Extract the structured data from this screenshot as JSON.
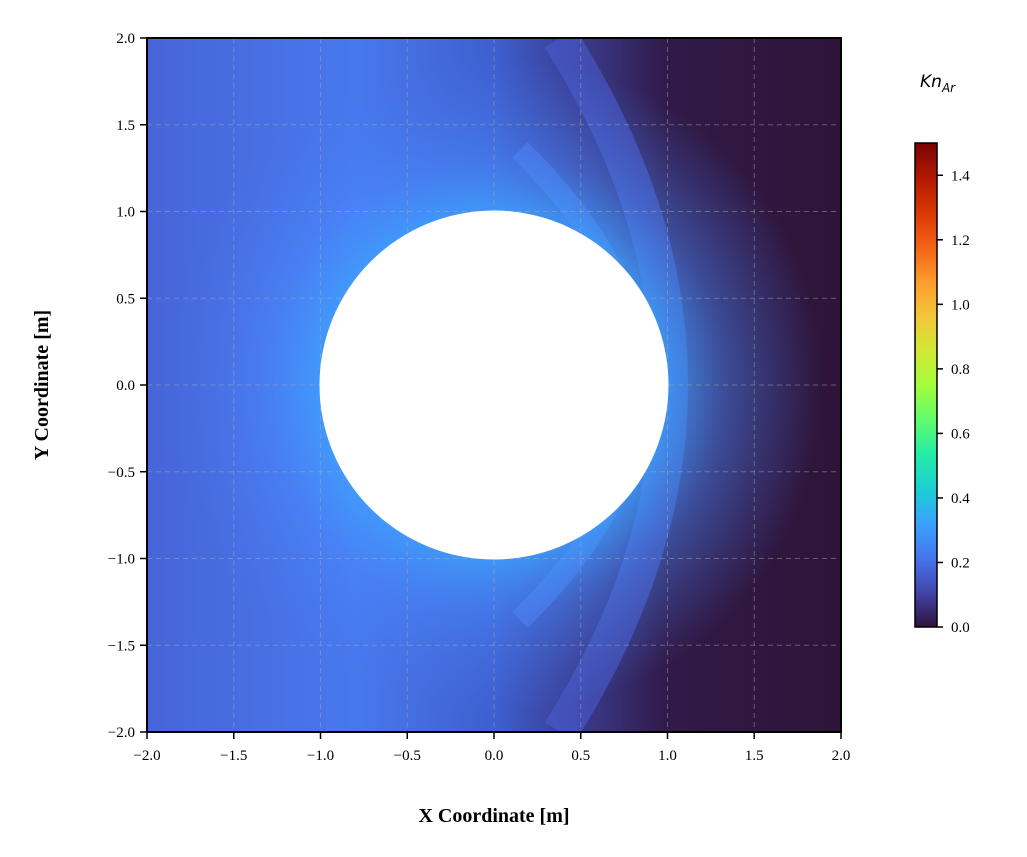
{
  "chart_data": {
    "type": "heatmap",
    "title": "",
    "xlabel": "X Coordinate [m]",
    "ylabel": "Y Coordinate [m]",
    "xlim": [
      -2.0,
      2.0
    ],
    "ylim": [
      -2.0,
      2.0
    ],
    "x_ticks": [
      "−2.0",
      "−1.5",
      "−1.0",
      "−0.5",
      "0.0",
      "0.5",
      "1.0",
      "1.5",
      "2.0"
    ],
    "y_ticks": [
      "−2.0",
      "−1.5",
      "−1.0",
      "−0.5",
      "0.0",
      "0.5",
      "1.0",
      "1.5",
      "2.0"
    ],
    "grid": true,
    "obstacle": {
      "shape": "circle",
      "center": [
        0.0,
        0.0
      ],
      "radius": 1.0,
      "color": "#ffffff"
    },
    "field": {
      "quantity": "Kn_Ar",
      "max_region_value": 1.5,
      "upstream_free_stream_value": 0.2,
      "downstream_wake_value": 0.02
    },
    "colorbar": {
      "label_main": "Kn",
      "label_sub": "Ar",
      "range": [
        0.0,
        1.5
      ],
      "ticks": [
        "0.0",
        "0.2",
        "0.4",
        "0.6",
        "0.8",
        "1.0",
        "1.2",
        "1.4"
      ],
      "tick_values": [
        0.0,
        0.2,
        0.4,
        0.6,
        0.8,
        1.0,
        1.2,
        1.4
      ],
      "colormap": "turbo",
      "colors": [
        "#30123b",
        "#4145ab",
        "#4675ed",
        "#39a2fc",
        "#1bcfd4",
        "#24eca6",
        "#61fc6c",
        "#a4fc3b",
        "#d1e834",
        "#f3c63a",
        "#fe9b2d",
        "#f36315",
        "#d93806",
        "#b11901",
        "#7a0402"
      ]
    }
  }
}
